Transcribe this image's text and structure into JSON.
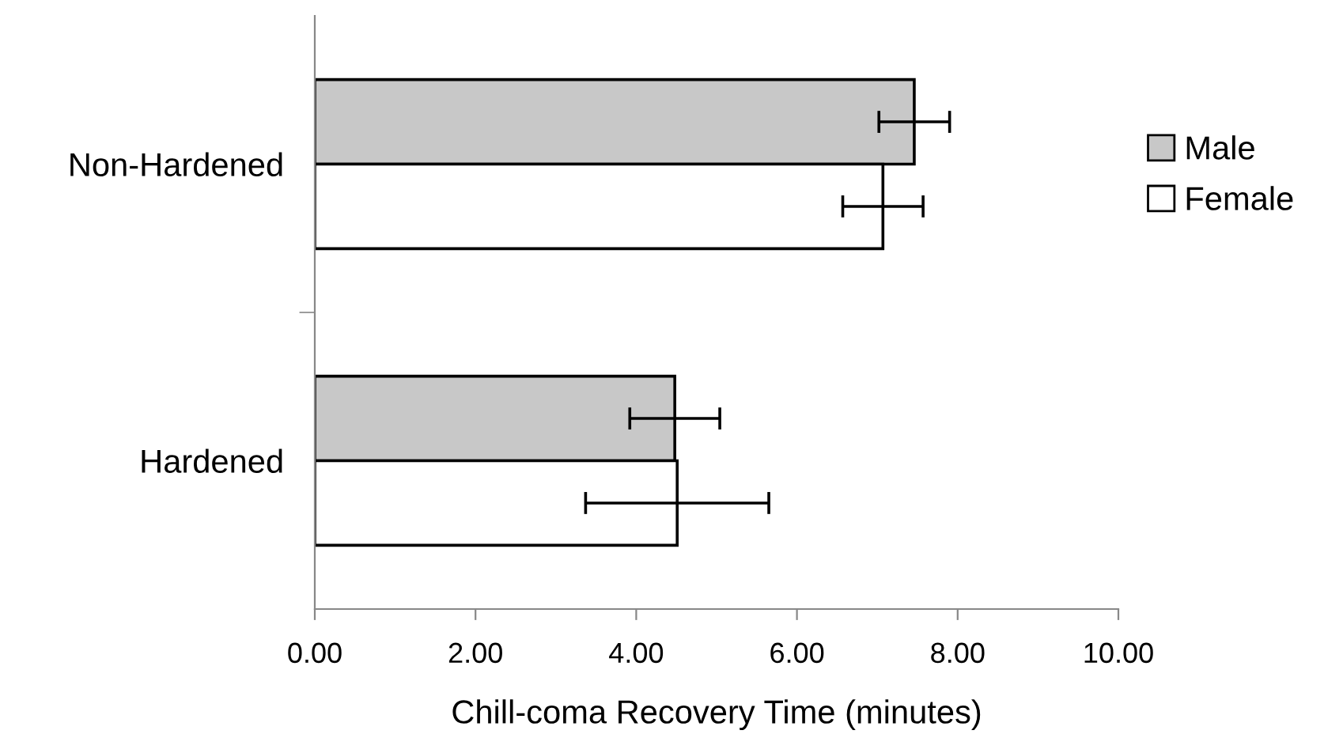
{
  "chart_data": {
    "type": "bar",
    "orientation": "horizontal",
    "xlabel": "Chill-coma Recovery Time (minutes)",
    "categories": [
      "Non-Hardened",
      "Hardened"
    ],
    "series": [
      {
        "name": "Male",
        "color": "#c8c8c8",
        "values": [
          7.46,
          4.48
        ],
        "errors": [
          0.44,
          0.56
        ]
      },
      {
        "name": "Female",
        "color": "#ffffff",
        "values": [
          7.07,
          4.51
        ],
        "errors": [
          0.5,
          1.14
        ]
      }
    ],
    "xlim": [
      0,
      10
    ],
    "xticks": [
      {
        "value": 0,
        "label": "0.00"
      },
      {
        "value": 2,
        "label": "2.00"
      },
      {
        "value": 4,
        "label": "4.00"
      },
      {
        "value": 6,
        "label": "6.00"
      },
      {
        "value": 8,
        "label": "8.00"
      },
      {
        "value": 10,
        "label": "10.00"
      }
    ],
    "grid": false,
    "legend": "right"
  }
}
